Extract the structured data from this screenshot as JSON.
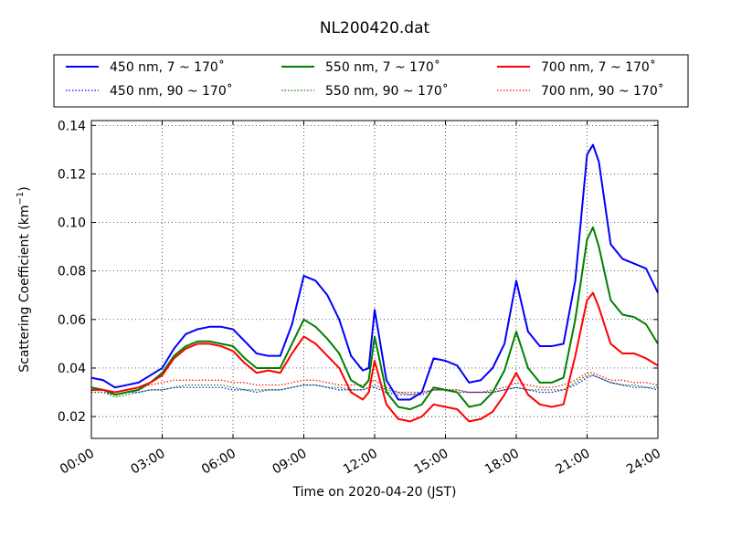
{
  "chart_data": {
    "type": "line",
    "title": "NL200420.dat",
    "xlabel": "Time on 2020-04-20 (JST)",
    "ylabel": "Scattering Coefficient (km",
    "ylabel_exp": "−1",
    "ylabel_close": ")",
    "x_unit": "hour",
    "xlim": [
      0,
      24
    ],
    "ylim": [
      0.011,
      0.142
    ],
    "x_ticks": [
      0,
      3,
      6,
      9,
      12,
      15,
      18,
      21,
      24
    ],
    "x_tick_labels": [
      "00:00",
      "03:00",
      "06:00",
      "09:00",
      "12:00",
      "15:00",
      "18:00",
      "21:00",
      "24:00"
    ],
    "y_ticks": [
      0.02,
      0.04,
      0.06,
      0.08,
      0.1,
      0.12,
      0.14
    ],
    "y_tick_labels": [
      "0.02",
      "0.04",
      "0.06",
      "0.08",
      "0.10",
      "0.12",
      "0.14"
    ],
    "grid": true,
    "legend_placement": "top, above plot",
    "x": [
      0,
      0.5,
      1,
      1.5,
      2,
      2.5,
      3,
      3.5,
      4,
      4.5,
      5,
      5.5,
      6,
      6.5,
      7,
      7.5,
      8,
      8.5,
      9,
      9.5,
      10,
      10.5,
      11,
      11.5,
      11.75,
      12,
      12.5,
      13,
      13.5,
      14,
      14.5,
      15,
      15.5,
      16,
      16.5,
      17,
      17.5,
      18,
      18.5,
      19,
      19.5,
      20,
      20.5,
      21,
      21.25,
      21.5,
      22,
      22.5,
      23,
      23.5,
      24
    ],
    "series": [
      {
        "name": "450 nm, 7 ~ 170˚",
        "color": "#0000ff",
        "style": "solid",
        "values": [
          0.036,
          0.035,
          0.032,
          0.033,
          0.034,
          0.037,
          0.04,
          0.048,
          0.054,
          0.056,
          0.057,
          0.057,
          0.056,
          0.051,
          0.046,
          0.045,
          0.045,
          0.058,
          0.078,
          0.076,
          0.07,
          0.06,
          0.045,
          0.039,
          0.04,
          0.064,
          0.035,
          0.027,
          0.027,
          0.03,
          0.044,
          0.043,
          0.041,
          0.034,
          0.035,
          0.04,
          0.05,
          0.076,
          0.055,
          0.049,
          0.049,
          0.05,
          0.076,
          0.128,
          0.132,
          0.125,
          0.091,
          0.085,
          0.083,
          0.081,
          0.071
        ]
      },
      {
        "name": "450 nm, 90 ~ 170˚",
        "color": "#0000ff",
        "style": "dotted",
        "values": [
          0.03,
          0.03,
          0.029,
          0.03,
          0.03,
          0.031,
          0.031,
          0.032,
          0.032,
          0.032,
          0.032,
          0.032,
          0.031,
          0.031,
          0.03,
          0.031,
          0.031,
          0.032,
          0.033,
          0.033,
          0.032,
          0.031,
          0.031,
          0.031,
          0.032,
          0.032,
          0.03,
          0.029,
          0.029,
          0.029,
          0.031,
          0.031,
          0.03,
          0.03,
          0.03,
          0.03,
          0.031,
          0.032,
          0.031,
          0.03,
          0.03,
          0.031,
          0.033,
          0.036,
          0.037,
          0.036,
          0.034,
          0.033,
          0.032,
          0.032,
          0.031
        ]
      },
      {
        "name": "550 nm, 7 ~ 170˚",
        "color": "#008000",
        "style": "solid",
        "values": [
          0.032,
          0.031,
          0.029,
          0.03,
          0.031,
          0.034,
          0.038,
          0.045,
          0.049,
          0.051,
          0.051,
          0.05,
          0.049,
          0.044,
          0.04,
          0.04,
          0.04,
          0.05,
          0.06,
          0.057,
          0.052,
          0.046,
          0.035,
          0.032,
          0.035,
          0.053,
          0.03,
          0.024,
          0.023,
          0.025,
          0.032,
          0.031,
          0.03,
          0.024,
          0.025,
          0.03,
          0.039,
          0.055,
          0.04,
          0.034,
          0.034,
          0.036,
          0.06,
          0.093,
          0.098,
          0.09,
          0.068,
          0.062,
          0.061,
          0.058,
          0.05
        ]
      },
      {
        "name": "550 nm, 90 ~ 170˚",
        "color": "#008000",
        "style": "dotted",
        "values": [
          0.03,
          0.03,
          0.028,
          0.029,
          0.03,
          0.031,
          0.031,
          0.032,
          0.033,
          0.033,
          0.033,
          0.033,
          0.032,
          0.031,
          0.031,
          0.031,
          0.031,
          0.032,
          0.033,
          0.033,
          0.032,
          0.032,
          0.031,
          0.031,
          0.032,
          0.033,
          0.031,
          0.03,
          0.029,
          0.03,
          0.031,
          0.031,
          0.031,
          0.03,
          0.03,
          0.03,
          0.031,
          0.032,
          0.031,
          0.031,
          0.031,
          0.031,
          0.034,
          0.037,
          0.037,
          0.036,
          0.034,
          0.033,
          0.033,
          0.032,
          0.032
        ]
      },
      {
        "name": "700 nm, 7 ~ 170˚",
        "color": "#ff0000",
        "style": "solid",
        "values": [
          0.031,
          0.031,
          0.03,
          0.031,
          0.032,
          0.034,
          0.037,
          0.044,
          0.048,
          0.05,
          0.05,
          0.049,
          0.047,
          0.042,
          0.038,
          0.039,
          0.038,
          0.046,
          0.053,
          0.05,
          0.045,
          0.04,
          0.03,
          0.027,
          0.03,
          0.043,
          0.025,
          0.019,
          0.018,
          0.02,
          0.025,
          0.024,
          0.023,
          0.018,
          0.019,
          0.022,
          0.029,
          0.038,
          0.029,
          0.025,
          0.024,
          0.025,
          0.045,
          0.068,
          0.071,
          0.065,
          0.05,
          0.046,
          0.046,
          0.044,
          0.041
        ]
      },
      {
        "name": "700 nm, 90 ~ 170˚",
        "color": "#ff0000",
        "style": "dotted",
        "values": [
          0.031,
          0.031,
          0.03,
          0.031,
          0.032,
          0.033,
          0.034,
          0.035,
          0.035,
          0.035,
          0.035,
          0.035,
          0.034,
          0.034,
          0.033,
          0.033,
          0.033,
          0.034,
          0.035,
          0.035,
          0.034,
          0.033,
          0.033,
          0.033,
          0.034,
          0.035,
          0.032,
          0.03,
          0.03,
          0.03,
          0.031,
          0.031,
          0.031,
          0.03,
          0.03,
          0.031,
          0.032,
          0.034,
          0.033,
          0.032,
          0.032,
          0.033,
          0.035,
          0.038,
          0.038,
          0.037,
          0.035,
          0.035,
          0.034,
          0.034,
          0.033
        ]
      }
    ]
  }
}
